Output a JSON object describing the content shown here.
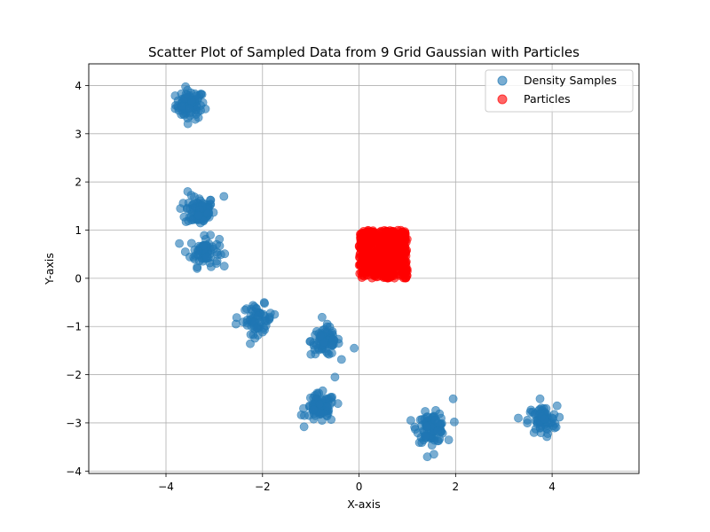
{
  "chart_data": {
    "type": "scatter",
    "title": "Scatter Plot of Sampled Data from 9 Grid Gaussian with Particles",
    "xlabel": "X-axis",
    "ylabel": "Y-axis",
    "xlim": [
      -5.6,
      5.8
    ],
    "ylim": [
      -4.05,
      4.45
    ],
    "xticks": [
      -4,
      -2,
      0,
      2,
      4
    ],
    "yticks": [
      -4,
      -3,
      -2,
      -1,
      0,
      1,
      2,
      3,
      4
    ],
    "xtick_labels": [
      "−4",
      "−2",
      "0",
      "2",
      "4"
    ],
    "ytick_labels": [
      "−4",
      "−3",
      "−2",
      "−1",
      "0",
      "1",
      "2",
      "3",
      "4"
    ],
    "grid": true,
    "legend_position": "top-right",
    "series": [
      {
        "name": "Density Samples",
        "color": "#1f77b4",
        "alpha": 0.6,
        "clusters": [
          {
            "center": [
              -3.5,
              3.6
            ],
            "spread": 0.15,
            "count": 80
          },
          {
            "center": [
              -3.3,
              1.4
            ],
            "spread": 0.15,
            "count": 90
          },
          {
            "center": [
              -3.2,
              0.55
            ],
            "spread": 0.15,
            "count": 70
          },
          {
            "center": [
              -2.1,
              -0.85
            ],
            "spread": 0.15,
            "count": 60
          },
          {
            "center": [
              -0.7,
              -1.3
            ],
            "spread": 0.15,
            "count": 80
          },
          {
            "center": [
              -0.8,
              -2.7
            ],
            "spread": 0.15,
            "count": 80
          },
          {
            "center": [
              1.5,
              -3.1
            ],
            "spread": 0.15,
            "count": 90
          },
          {
            "center": [
              3.8,
              -2.95
            ],
            "spread": 0.15,
            "count": 70
          }
        ],
        "outliers": [
          [
            -3.7,
            1.45
          ],
          [
            -3.55,
            1.8
          ],
          [
            -2.8,
            1.7
          ],
          [
            -3.6,
            0.55
          ],
          [
            -2.55,
            -0.95
          ],
          [
            -1.75,
            -0.75
          ],
          [
            -0.1,
            -1.45
          ],
          [
            -1.15,
            -2.7
          ],
          [
            -0.5,
            -2.05
          ],
          [
            1.95,
            -2.5
          ],
          [
            3.3,
            -2.9
          ],
          [
            3.75,
            -2.5
          ],
          [
            1.55,
            -3.65
          ]
        ]
      },
      {
        "name": "Particles",
        "color": "#ff0000",
        "alpha": 0.6,
        "uniform_box": {
          "x": [
            0.0,
            1.0
          ],
          "y": [
            0.0,
            1.0
          ]
        },
        "count": 500
      }
    ]
  }
}
